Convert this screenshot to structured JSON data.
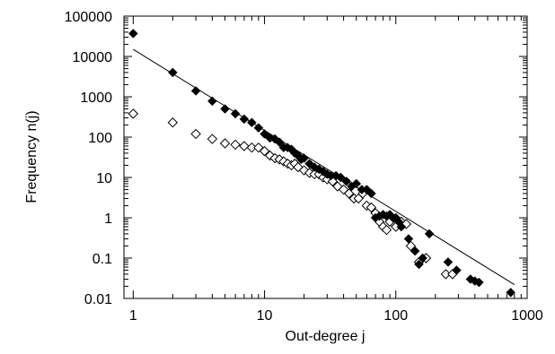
{
  "chart_data": {
    "type": "scatter",
    "title": "",
    "xlabel": "Out-degree j",
    "ylabel": "Frequency n(j)",
    "x_scale": "log",
    "y_scale": "log",
    "xlim": [
      0.85,
      1000
    ],
    "ylim": [
      0.01,
      100000
    ],
    "x_ticks": [
      {
        "value": 1,
        "label": "1"
      },
      {
        "value": 10,
        "label": "10"
      },
      {
        "value": 100,
        "label": "100"
      },
      {
        "value": 1000,
        "label": "1000"
      }
    ],
    "y_ticks": [
      {
        "value": 0.01,
        "label": "0.01"
      },
      {
        "value": 0.1,
        "label": "0.1"
      },
      {
        "value": 1,
        "label": "1"
      },
      {
        "value": 10,
        "label": "10"
      },
      {
        "value": 100,
        "label": "100"
      },
      {
        "value": 1000,
        "label": "1000"
      },
      {
        "value": 10000,
        "label": "10000"
      },
      {
        "value": 100000,
        "label": "100000"
      }
    ],
    "grid": false,
    "legend": "none",
    "series": [
      {
        "marker": "filled-diamond",
        "color": "#000000",
        "points": [
          [
            1,
            37000
          ],
          [
            2,
            4000
          ],
          [
            3,
            1400
          ],
          [
            4,
            780
          ],
          [
            5,
            500
          ],
          [
            6,
            380
          ],
          [
            7,
            280
          ],
          [
            8,
            230
          ],
          [
            9,
            170
          ],
          [
            10,
            120
          ],
          [
            11,
            95
          ],
          [
            12,
            90
          ],
          [
            13,
            75
          ],
          [
            14,
            55
          ],
          [
            15,
            55
          ],
          [
            16,
            50
          ],
          [
            17,
            40
          ],
          [
            18,
            35
          ],
          [
            19,
            28
          ],
          [
            20,
            30
          ],
          [
            22,
            22
          ],
          [
            24,
            18
          ],
          [
            26,
            16
          ],
          [
            28,
            14
          ],
          [
            30,
            12
          ],
          [
            32,
            11
          ],
          [
            35,
            11
          ],
          [
            38,
            10
          ],
          [
            42,
            8
          ],
          [
            46,
            6
          ],
          [
            50,
            7
          ],
          [
            55,
            5
          ],
          [
            60,
            5
          ],
          [
            65,
            4
          ],
          [
            70,
            1.0
          ],
          [
            75,
            1.1
          ],
          [
            80,
            1.2
          ],
          [
            85,
            1.1
          ],
          [
            90,
            1.2
          ],
          [
            95,
            1.0
          ],
          [
            100,
            1.0
          ],
          [
            105,
            0.8
          ],
          [
            110,
            0.6
          ],
          [
            125,
            0.3
          ],
          [
            140,
            0.15
          ],
          [
            150,
            0.07
          ],
          [
            160,
            0.1
          ],
          [
            180,
            0.4
          ],
          [
            250,
            0.08
          ],
          [
            290,
            0.05
          ],
          [
            370,
            0.03
          ],
          [
            400,
            0.027
          ],
          [
            430,
            0.025
          ],
          [
            750,
            0.014
          ]
        ]
      },
      {
        "marker": "open-diamond",
        "color": "#000000",
        "points": [
          [
            1,
            380
          ],
          [
            2,
            230
          ],
          [
            3,
            120
          ],
          [
            4,
            90
          ],
          [
            5,
            70
          ],
          [
            6,
            65
          ],
          [
            7,
            60
          ],
          [
            8,
            55
          ],
          [
            9,
            55
          ],
          [
            10,
            45
          ],
          [
            11,
            35
          ],
          [
            12,
            30
          ],
          [
            13,
            28
          ],
          [
            14,
            25
          ],
          [
            15,
            22
          ],
          [
            16,
            20
          ],
          [
            17,
            22
          ],
          [
            18,
            18
          ],
          [
            20,
            15
          ],
          [
            22,
            13
          ],
          [
            24,
            12
          ],
          [
            26,
            12
          ],
          [
            28,
            10
          ],
          [
            30,
            9
          ],
          [
            33,
            8
          ],
          [
            36,
            6
          ],
          [
            40,
            5
          ],
          [
            44,
            4
          ],
          [
            48,
            3
          ],
          [
            52,
            3
          ],
          [
            56,
            4
          ],
          [
            60,
            2
          ],
          [
            65,
            1.8
          ],
          [
            70,
            1.3
          ],
          [
            75,
            0.8
          ],
          [
            80,
            0.6
          ],
          [
            85,
            0.5
          ],
          [
            90,
            0.8
          ],
          [
            100,
            0.6
          ],
          [
            110,
            0.8
          ],
          [
            120,
            0.7
          ],
          [
            130,
            0.2
          ],
          [
            150,
            0.08
          ],
          [
            170,
            0.1
          ],
          [
            240,
            0.04
          ],
          [
            270,
            0.04
          ]
        ]
      }
    ],
    "fit_line": {
      "type": "power-law",
      "color": "#000000",
      "from": [
        1,
        15000
      ],
      "to": [
        800,
        0.022
      ]
    }
  }
}
